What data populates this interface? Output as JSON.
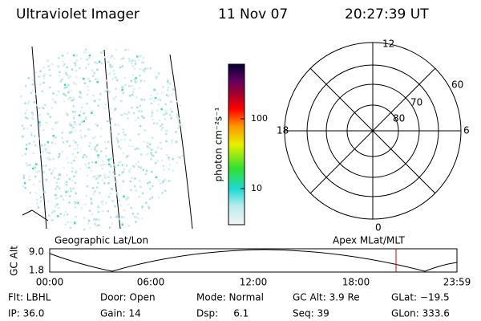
{
  "header": {
    "instrument": "Ultraviolet Imager",
    "date": "11 Nov 07",
    "time": "20:27:39 UT"
  },
  "colorbar": {
    "label": "photon cm⁻²s⁻¹",
    "ticks": [
      "100",
      "10"
    ]
  },
  "polar": {
    "hours": [
      "12",
      "18",
      "6",
      "0"
    ],
    "latitudes": [
      "60",
      "70",
      "80"
    ]
  },
  "orbit": {
    "left_title": "Geographic Lat/Lon",
    "right_title": "Apex MLat/MLT",
    "y_label": "GC Alt",
    "y_ticks": [
      "9.0",
      "1.8"
    ],
    "x_ticks": [
      "00:00",
      "06:00",
      "12:00",
      "18:00",
      "23:59"
    ]
  },
  "info": {
    "rows": [
      [
        "Flt: LBHL",
        "Door: Open",
        "Mode: Normal",
        "GC Alt: 3.9 Re",
        "GLat: −19.5"
      ],
      [
        "IP: 36.0",
        "Gain: 14",
        "Dsp:     6.1",
        "Seq: 39",
        "GLon: 333.6"
      ]
    ]
  }
}
